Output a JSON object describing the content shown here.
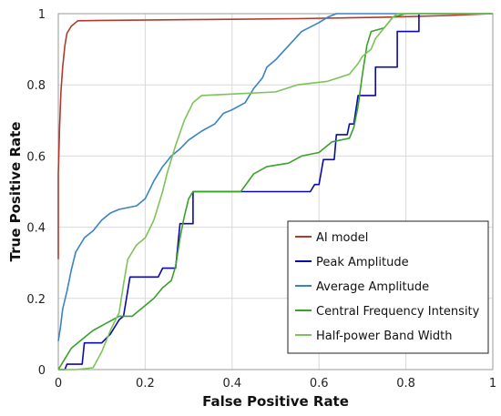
{
  "chart_data": {
    "type": "line",
    "xlabel": "False Positive Rate",
    "ylabel": "True Positive Rate",
    "xlim": [
      0,
      1
    ],
    "ylim": [
      0,
      1
    ],
    "x_ticks": [
      "0",
      "0.2",
      "0.4",
      "0.6",
      "0.8",
      "1"
    ],
    "y_ticks": [
      "0",
      "0.2",
      "0.4",
      "0.6",
      "0.8",
      "1"
    ],
    "grid": true,
    "legend_position": "bottom-right",
    "series": [
      {
        "name": "AI model",
        "color": "#b03a2e",
        "points": [
          [
            0,
            0.31
          ],
          [
            0,
            0.55
          ],
          [
            0.003,
            0.68
          ],
          [
            0.006,
            0.78
          ],
          [
            0.01,
            0.85
          ],
          [
            0.015,
            0.91
          ],
          [
            0.02,
            0.945
          ],
          [
            0.03,
            0.965
          ],
          [
            0.045,
            0.98
          ],
          [
            0.1,
            0.981
          ],
          [
            0.3,
            0.983
          ],
          [
            0.55,
            0.986
          ],
          [
            0.75,
            0.99
          ],
          [
            0.9,
            0.995
          ],
          [
            1,
            1
          ]
        ]
      },
      {
        "name": "Peak Amplitude",
        "color": "#0a0aa6",
        "points": [
          [
            0,
            0
          ],
          [
            0.015,
            0
          ],
          [
            0.02,
            0.015
          ],
          [
            0.055,
            0.015
          ],
          [
            0.06,
            0.075
          ],
          [
            0.1,
            0.075
          ],
          [
            0.12,
            0.1
          ],
          [
            0.14,
            0.14
          ],
          [
            0.15,
            0.15
          ],
          [
            0.165,
            0.26
          ],
          [
            0.23,
            0.26
          ],
          [
            0.24,
            0.285
          ],
          [
            0.27,
            0.285
          ],
          [
            0.28,
            0.41
          ],
          [
            0.31,
            0.41
          ],
          [
            0.31,
            0.5
          ],
          [
            0.58,
            0.5
          ],
          [
            0.59,
            0.52
          ],
          [
            0.6,
            0.52
          ],
          [
            0.61,
            0.59
          ],
          [
            0.635,
            0.59
          ],
          [
            0.64,
            0.66
          ],
          [
            0.665,
            0.66
          ],
          [
            0.67,
            0.69
          ],
          [
            0.68,
            0.69
          ],
          [
            0.69,
            0.77
          ],
          [
            0.73,
            0.77
          ],
          [
            0.73,
            0.85
          ],
          [
            0.78,
            0.85
          ],
          [
            0.78,
            0.95
          ],
          [
            0.83,
            0.95
          ],
          [
            0.83,
            1
          ],
          [
            1,
            1
          ]
        ]
      },
      {
        "name": "Average Amplitude",
        "color": "#3a82c8",
        "points": [
          [
            0,
            0.08
          ],
          [
            0.005,
            0.12
          ],
          [
            0.01,
            0.17
          ],
          [
            0.02,
            0.22
          ],
          [
            0.03,
            0.28
          ],
          [
            0.04,
            0.33
          ],
          [
            0.06,
            0.37
          ],
          [
            0.08,
            0.39
          ],
          [
            0.1,
            0.42
          ],
          [
            0.12,
            0.44
          ],
          [
            0.14,
            0.45
          ],
          [
            0.18,
            0.46
          ],
          [
            0.2,
            0.48
          ],
          [
            0.22,
            0.53
          ],
          [
            0.24,
            0.57
          ],
          [
            0.26,
            0.6
          ],
          [
            0.28,
            0.62
          ],
          [
            0.3,
            0.645
          ],
          [
            0.33,
            0.67
          ],
          [
            0.36,
            0.69
          ],
          [
            0.38,
            0.72
          ],
          [
            0.4,
            0.73
          ],
          [
            0.43,
            0.75
          ],
          [
            0.45,
            0.79
          ],
          [
            0.47,
            0.82
          ],
          [
            0.48,
            0.85
          ],
          [
            0.5,
            0.87
          ],
          [
            0.53,
            0.91
          ],
          [
            0.56,
            0.95
          ],
          [
            0.6,
            0.975
          ],
          [
            0.62,
            0.99
          ],
          [
            0.64,
            1
          ],
          [
            1,
            1
          ]
        ]
      },
      {
        "name": "Central Frequency Intensity",
        "color": "#3aa12a",
        "points": [
          [
            0,
            0
          ],
          [
            0.01,
            0.02
          ],
          [
            0.03,
            0.06
          ],
          [
            0.06,
            0.09
          ],
          [
            0.08,
            0.11
          ],
          [
            0.11,
            0.13
          ],
          [
            0.14,
            0.15
          ],
          [
            0.17,
            0.15
          ],
          [
            0.2,
            0.18
          ],
          [
            0.22,
            0.2
          ],
          [
            0.24,
            0.23
          ],
          [
            0.26,
            0.25
          ],
          [
            0.27,
            0.29
          ],
          [
            0.28,
            0.37
          ],
          [
            0.29,
            0.43
          ],
          [
            0.3,
            0.48
          ],
          [
            0.31,
            0.5
          ],
          [
            0.42,
            0.5
          ],
          [
            0.45,
            0.55
          ],
          [
            0.48,
            0.57
          ],
          [
            0.53,
            0.58
          ],
          [
            0.56,
            0.6
          ],
          [
            0.6,
            0.61
          ],
          [
            0.63,
            0.64
          ],
          [
            0.67,
            0.65
          ],
          [
            0.68,
            0.68
          ],
          [
            0.69,
            0.74
          ],
          [
            0.7,
            0.83
          ],
          [
            0.71,
            0.91
          ],
          [
            0.72,
            0.95
          ],
          [
            0.75,
            0.96
          ],
          [
            0.77,
            0.99
          ],
          [
            0.8,
            1
          ],
          [
            1,
            1
          ]
        ]
      },
      {
        "name": "Half-power Band Width",
        "color": "#7cc456",
        "points": [
          [
            0,
            0
          ],
          [
            0.04,
            0
          ],
          [
            0.08,
            0.005
          ],
          [
            0.1,
            0.05
          ],
          [
            0.12,
            0.11
          ],
          [
            0.14,
            0.16
          ],
          [
            0.15,
            0.24
          ],
          [
            0.16,
            0.31
          ],
          [
            0.18,
            0.35
          ],
          [
            0.2,
            0.37
          ],
          [
            0.22,
            0.42
          ],
          [
            0.24,
            0.5
          ],
          [
            0.25,
            0.55
          ],
          [
            0.27,
            0.63
          ],
          [
            0.29,
            0.7
          ],
          [
            0.31,
            0.75
          ],
          [
            0.33,
            0.77
          ],
          [
            0.5,
            0.78
          ],
          [
            0.55,
            0.8
          ],
          [
            0.62,
            0.81
          ],
          [
            0.67,
            0.83
          ],
          [
            0.69,
            0.86
          ],
          [
            0.7,
            0.88
          ],
          [
            0.72,
            0.9
          ],
          [
            0.73,
            0.93
          ],
          [
            0.75,
            0.96
          ],
          [
            0.77,
            0.99
          ],
          [
            0.78,
            1
          ],
          [
            1,
            1
          ]
        ]
      }
    ]
  }
}
